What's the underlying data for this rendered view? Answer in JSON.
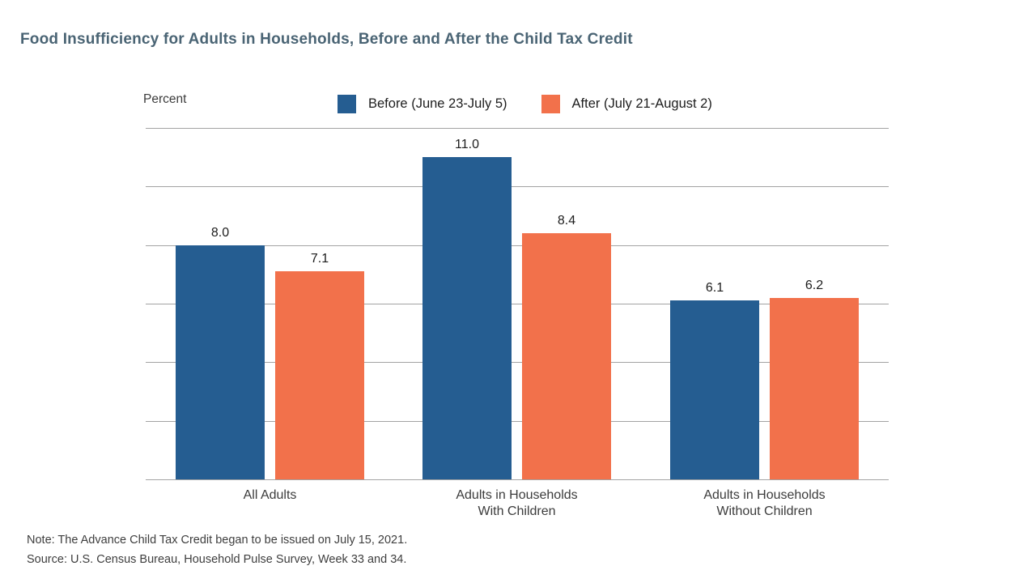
{
  "note": "Note: The Advance Child Tax Credit began to be issued on July 15, 2021.",
  "source": "Source: U.S. Census Bureau, Household Pulse Survey, Week 33 and 34.",
  "colors": {
    "title_text": "#4a6474",
    "grid": "#a3a3a3",
    "legend_text": "#1d1d1d",
    "category_text": "#3c3c3c"
  },
  "chart_data": {
    "type": "bar",
    "title": "Food Insufficiency for Adults in Households, Before and After the Child Tax Credit",
    "ylabel": "Percent",
    "xlabel": "",
    "categories": [
      "All Adults",
      "Adults in Households\nWith Children",
      "Adults in Households\nWithout Children"
    ],
    "series": [
      {
        "name": "Before (June 23-July 5)",
        "color": "#255D91",
        "values": [
          8.0,
          11.0,
          6.1
        ]
      },
      {
        "name": "After (July 21-August 2)",
        "color": "#F2714B",
        "values": [
          7.1,
          8.4,
          6.2
        ]
      }
    ],
    "ylim": [
      0,
      12
    ],
    "gridline_step": 2,
    "grid": true,
    "y_tick_labels_visible": false,
    "value_labels": true,
    "value_label_format": "0.1f",
    "legend_position": "top"
  }
}
